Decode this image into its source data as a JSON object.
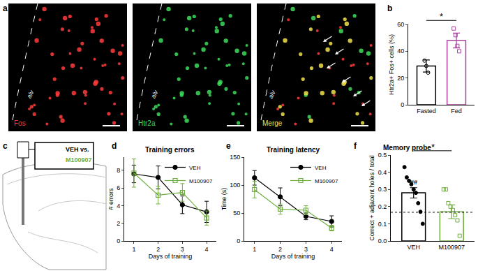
{
  "panel_labels": [
    "a",
    "b",
    "c",
    "d",
    "e",
    "f"
  ],
  "images": {
    "channels": [
      {
        "name": "Fos",
        "color": "#ff3b3b"
      },
      {
        "name": "Htr2a",
        "color": "#3ddc5a"
      },
      {
        "name": "Merge",
        "color": "#f2e24a"
      }
    ],
    "region_label": "alv"
  },
  "diagram": {
    "box_lines": [
      {
        "text": "VEH vs.",
        "color": "#000000"
      },
      {
        "text": "M100907",
        "color": "#6fae3e"
      }
    ]
  },
  "chart_data": [
    {
      "type": "bar",
      "ylabel": "Htr2a+ Fos+ cells (%)",
      "categories": [
        "Fasted",
        "Fed"
      ],
      "values": [
        29,
        48
      ],
      "errors": [
        4.5,
        5.5
      ],
      "colors": [
        "#000000",
        "#a8409c"
      ],
      "points": [
        [
          33,
          29,
          24
        ],
        [
          57,
          52,
          44,
          40
        ]
      ],
      "ylim": [
        0,
        60
      ],
      "yticks": [
        0,
        20,
        40,
        60
      ],
      "significance": "*"
    },
    {
      "type": "line",
      "title": "Training errors",
      "xlabel": "Days of training",
      "ylabel": "# errors",
      "x": [
        1,
        2,
        3,
        4
      ],
      "xlim": [
        0.6,
        4.4
      ],
      "xticks": [
        1,
        2,
        3,
        4
      ],
      "ylim": [
        0,
        9.5
      ],
      "yticks": [
        0,
        2,
        4,
        6,
        8
      ],
      "legend": "upper right",
      "series": [
        {
          "name": "VEH",
          "color": "#000000",
          "marker": "circle",
          "values": [
            7.6,
            7.2,
            4.1,
            3.3
          ],
          "errors": [
            1.0,
            1.3,
            1.0,
            1.2
          ]
        },
        {
          "name": "M100907",
          "color": "#6fae3e",
          "marker": "square-open",
          "values": [
            7.7,
            5.2,
            5.5,
            2.6
          ],
          "errors": [
            1.6,
            1.0,
            1.0,
            0.8
          ]
        }
      ]
    },
    {
      "type": "line",
      "title": "Training latency",
      "xlabel": "Days of training",
      "ylabel": "Time (s)",
      "x": [
        1,
        2,
        3,
        4
      ],
      "xlim": [
        0.6,
        4.4
      ],
      "xticks": [
        1,
        2,
        3,
        4
      ],
      "ylim": [
        0,
        150
      ],
      "yticks": [
        0,
        50,
        100,
        150
      ],
      "legend": "upper right",
      "series": [
        {
          "name": "VEH",
          "color": "#000000",
          "marker": "circle",
          "values": [
            113,
            79,
            44,
            35
          ],
          "errors": [
            13,
            16,
            6,
            10
          ]
        },
        {
          "name": "M100907",
          "color": "#6fae3e",
          "marker": "square-open",
          "values": [
            92,
            57,
            55,
            23
          ],
          "errors": [
            15,
            9,
            8,
            5
          ]
        }
      ]
    },
    {
      "type": "bar",
      "title": "Memory probe",
      "ylabel": "Correct + adjacent holes / total",
      "categories": [
        "VEH",
        "M100907"
      ],
      "values": [
        0.28,
        0.17
      ],
      "errors": [
        0.03,
        0.04
      ],
      "colors": [
        "#000000",
        "#6fae3e"
      ],
      "points": [
        [
          0.43,
          0.37,
          0.35,
          0.33,
          0.3,
          0.28,
          0.22,
          0.17,
          0.1
        ],
        [
          0.3,
          0.3,
          0.22,
          0.2,
          0.18,
          0.15,
          0.12,
          0.03
        ]
      ],
      "ylim": [
        0,
        0.5
      ],
      "yticks": [
        {
          "value": 0,
          "label": "0.0"
        },
        0.1,
        0.2,
        0.3,
        0.4,
        0.5
      ],
      "hline": {
        "value": 0.167,
        "line_style": "dotted"
      },
      "annotations": [
        {
          "category": "VEH",
          "text": "##"
        }
      ],
      "significance": "*"
    }
  ]
}
